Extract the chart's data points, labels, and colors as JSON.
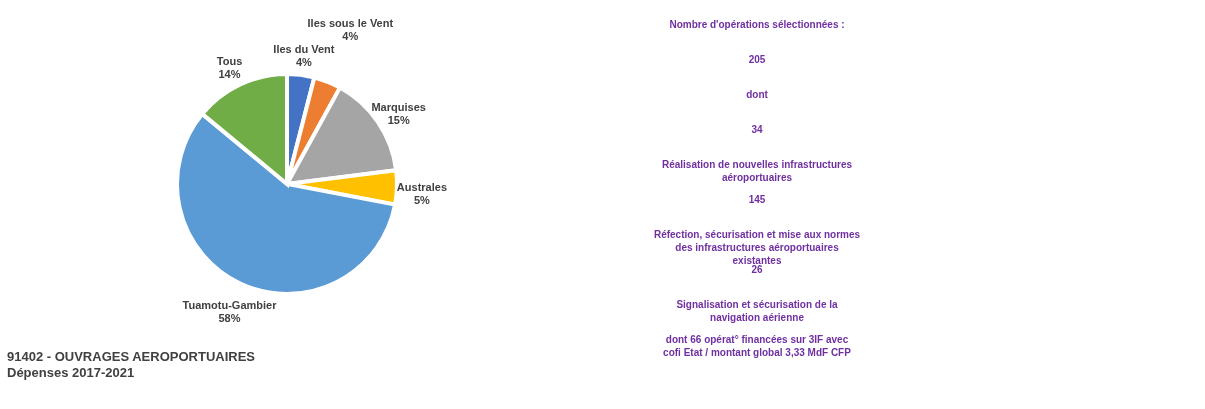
{
  "chart_data": [
    {
      "type": "pie",
      "title": "91402 - OUVRAGES AEROPORTUAIRES",
      "subtitle": "Dépenses 2017-2021",
      "categories": [
        "Iles du Vent",
        "Iles sous le Vent",
        "Marquises",
        "Australes",
        "Tuamotu-Gambier",
        "Tous"
      ],
      "values": [
        4,
        4,
        15,
        5,
        58,
        14
      ],
      "colors": [
        "#4472c4",
        "#ed7d31",
        "#a5a5a5",
        "#ffc000",
        "#5b9bd5",
        "#70ad47"
      ],
      "value_labels": [
        "4%",
        "4%",
        "15%",
        "5%",
        "58%",
        "14%"
      ],
      "data_labels": true,
      "legend": false
    },
    {
      "type": "other",
      "annotations": [
        "Nombre d'opérations sélectionnées :",
        "205",
        "dont",
        "34",
        "Réalisation de nouvelles infrastructures aéroportuaires",
        "145",
        "Réfection, sécurisation et mise aux normes des infrastructures aéroportuaires existantes",
        "26",
        "Signalisation et sécurisation de la navigation aérienne",
        "dont 66 opérat° financées sur 3IF avec cofi Etat / montant global 3,33 MdF CFP"
      ]
    }
  ]
}
